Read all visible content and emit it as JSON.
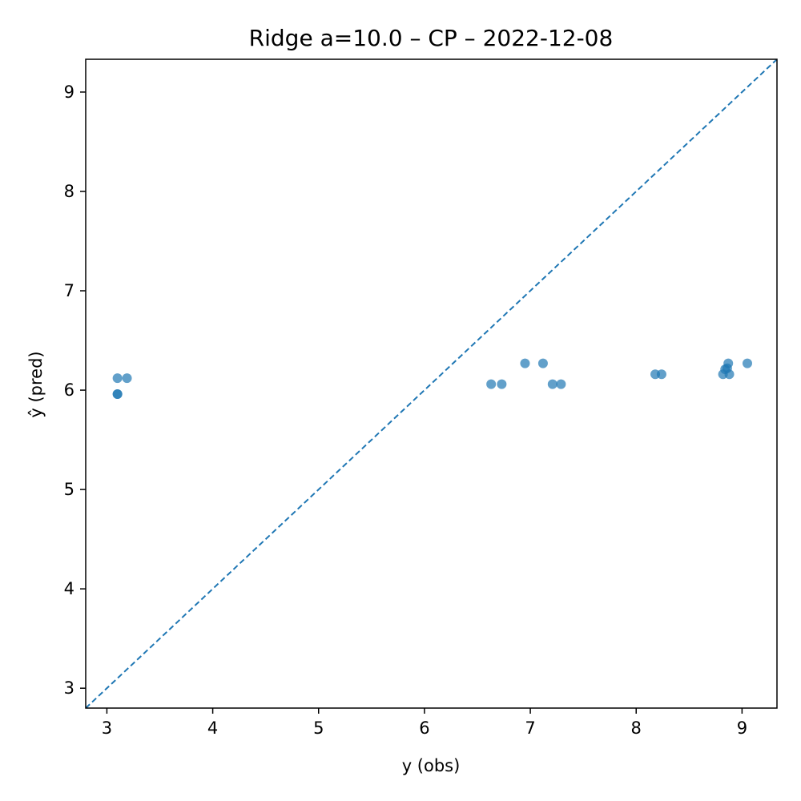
{
  "chart_data": {
    "type": "scatter",
    "title": "Ridge a=10.0 – CP – 2022-12-08",
    "xlabel": "y (obs)",
    "ylabel": "ŷ (pred)",
    "xlim": [
      2.8,
      9.33
    ],
    "ylim": [
      2.8,
      9.33
    ],
    "xticks": [
      3,
      4,
      5,
      6,
      7,
      8,
      9
    ],
    "yticks": [
      3,
      4,
      5,
      6,
      7,
      8,
      9
    ],
    "grid": false,
    "reference_line": {
      "type": "y=x",
      "style": "dashed"
    },
    "colors": {
      "points": "#1f77b4",
      "line": "#1f77b4"
    },
    "series": [
      {
        "name": "predictions",
        "x": [
          3.1,
          3.19,
          3.1,
          3.1,
          6.63,
          6.73,
          6.95,
          7.12,
          7.21,
          7.29,
          8.18,
          8.24,
          8.82,
          8.84,
          8.86,
          8.87,
          8.88,
          9.05
        ],
        "y": [
          6.12,
          6.12,
          5.96,
          5.96,
          6.06,
          6.06,
          6.27,
          6.27,
          6.06,
          6.06,
          6.16,
          6.16,
          6.16,
          6.21,
          6.22,
          6.27,
          6.16,
          6.27
        ]
      }
    ]
  }
}
